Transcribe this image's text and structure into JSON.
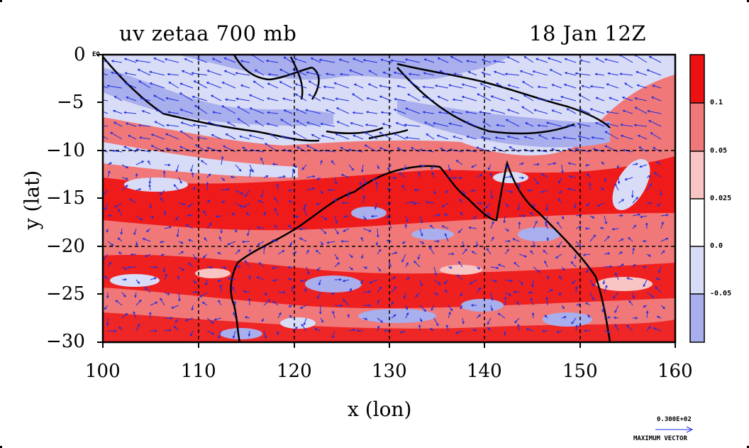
{
  "header": {
    "title_left": "uv zetaa 700 mb",
    "title_right": "18 Jan 12Z"
  },
  "axes": {
    "xlabel": "x (lon)",
    "ylabel": "y (lat)",
    "x_ticks": [
      "100",
      "110",
      "120",
      "130",
      "140",
      "150",
      "160"
    ],
    "y_ticks": [
      "0",
      "−5",
      "−10",
      "−15",
      "−20",
      "−25",
      "−30"
    ],
    "equator_label": "EQ"
  },
  "map": {
    "lon_range": [
      100,
      160
    ],
    "lat_range": [
      -30,
      0
    ],
    "gridlines_dashed": true,
    "field": "absolute vorticity (zetaa) with wind vectors (uv)",
    "pressure_level": "700 mb"
  },
  "colorbar": {
    "labels": [
      "0.1",
      "0.05",
      "0.025",
      "0.0",
      "-0.05"
    ],
    "colors": [
      "#ee1111",
      "#f07878",
      "#f8c4c4",
      "#ffffff",
      "#d8dcf6",
      "#a9aeec"
    ]
  },
  "vector_key": {
    "magnitude": "0.300E+02",
    "label": "MAXIMUM VECTOR"
  },
  "colors": {
    "red": "#ee1111",
    "blue_vectors": "#1f2fe0",
    "light_blue": "#a9aeec",
    "pale_blue": "#d8dcf6"
  }
}
